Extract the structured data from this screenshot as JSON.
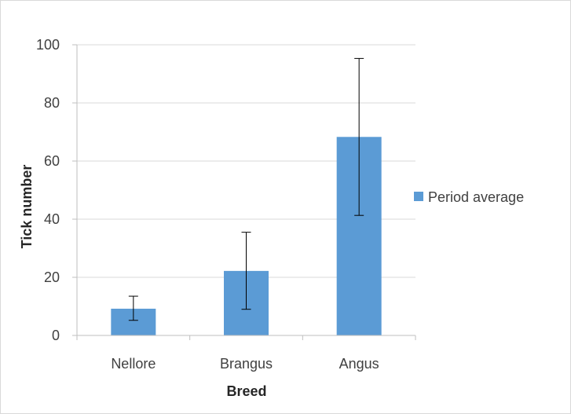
{
  "chart_data": {
    "type": "bar",
    "categories": [
      "Nellore",
      "Brangus",
      "Angus"
    ],
    "series": [
      {
        "name": "Period average",
        "values": [
          9.2,
          22.2,
          68.3
        ],
        "error_low": [
          5.2,
          9.0,
          41.3
        ],
        "error_high": [
          13.5,
          35.5,
          95.3
        ],
        "color": "#5b9bd5"
      }
    ],
    "xlabel": "Breed",
    "ylabel": "Tick number",
    "ylim": [
      0,
      100
    ],
    "yticks": [
      "0",
      "20",
      "40",
      "60",
      "80",
      "100"
    ],
    "grid": true,
    "legend": "right"
  }
}
